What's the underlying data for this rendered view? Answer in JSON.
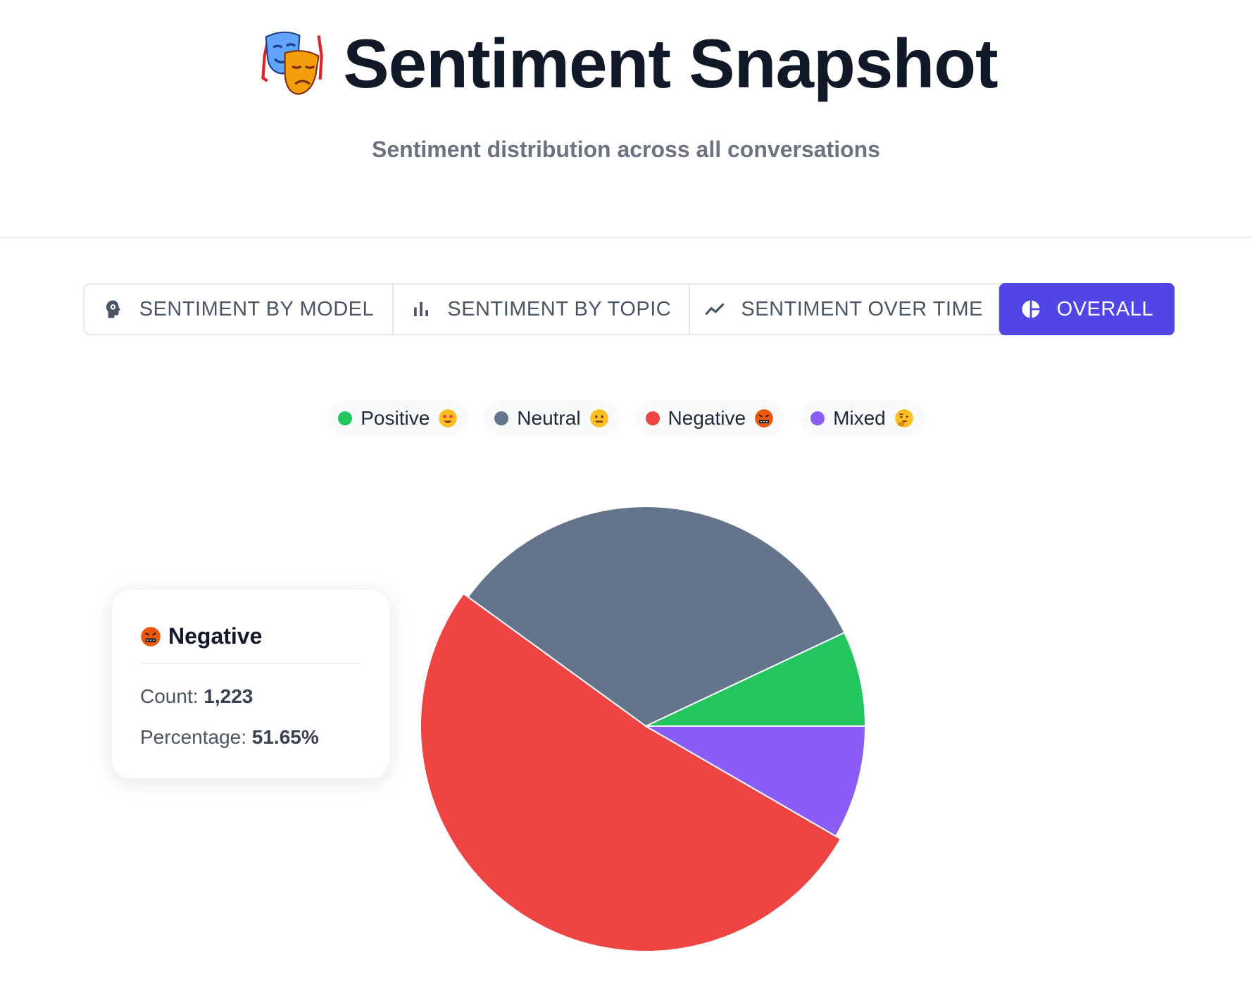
{
  "header": {
    "title": "Sentiment Snapshot",
    "title_icon": "performing-arts-masks-icon",
    "subtitle": "Sentiment distribution across all conversations"
  },
  "tabs": [
    {
      "label": "SENTIMENT BY MODEL",
      "icon": "head-gear-icon",
      "active": false
    },
    {
      "label": "SENTIMENT BY TOPIC",
      "icon": "bar-chart-icon",
      "active": false
    },
    {
      "label": "SENTIMENT OVER TIME",
      "icon": "trend-line-icon",
      "active": false
    },
    {
      "label": "OVERALL",
      "icon": "pie-chart-icon",
      "active": true
    }
  ],
  "chart_data": {
    "type": "pie",
    "legend_position": "top-center",
    "series": [
      {
        "name": "Positive",
        "emoji_icon": "heart-eyes-emoji-icon",
        "color": "#22c55e",
        "percent": 7.0
      },
      {
        "name": "Neutral",
        "emoji_icon": "neutral-face-emoji-icon",
        "color": "#64748b",
        "percent": 33.0
      },
      {
        "name": "Negative",
        "emoji_icon": "cursing-face-emoji-icon",
        "color": "#ef4444",
        "percent": 51.65
      },
      {
        "name": "Mixed",
        "emoji_icon": "thinking-face-emoji-icon",
        "color": "#8b5cf6",
        "percent": 8.35
      }
    ]
  },
  "tooltip": {
    "series": "Negative",
    "count_label": "Count:",
    "count_value": "1,223",
    "percentage_label": "Percentage:",
    "percentage_value": "51.65%"
  }
}
